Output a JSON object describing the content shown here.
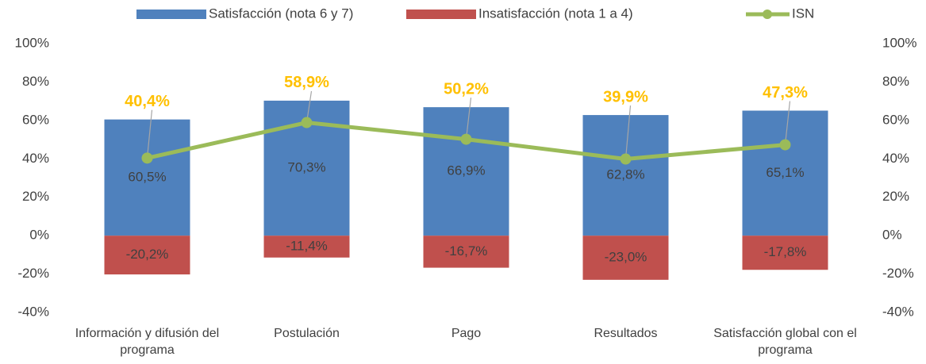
{
  "chart_data": {
    "type": "bar",
    "categories": [
      "Información y difusión del programa",
      "Postulación",
      "Pago",
      "Resultados",
      "Satisfacción global con el programa"
    ],
    "series": [
      {
        "name": "Satisfacción (nota 6 y 7)",
        "type": "bar",
        "color": "#4f81bd",
        "values": [
          60.5,
          70.3,
          66.9,
          62.8,
          65.1
        ],
        "value_labels": [
          "60,5%",
          "70,3%",
          "66,9%",
          "62,8%",
          "65,1%"
        ]
      },
      {
        "name": "Insatisfacción (nota 1 a 4)",
        "type": "bar",
        "color": "#c0504d",
        "values": [
          -20.2,
          -11.4,
          -16.7,
          -23.0,
          -17.8
        ],
        "value_labels": [
          "-20,2%",
          "-11,4%",
          "-16,7%",
          "-23,0%",
          "-17,8%"
        ]
      },
      {
        "name": "ISN",
        "type": "line",
        "axis": "y2",
        "color": "#9bbb59",
        "label_color": "#ffc000",
        "values": [
          40.4,
          58.9,
          50.2,
          39.9,
          47.3
        ],
        "value_labels": [
          "40,4%",
          "58,9%",
          "50,2%",
          "39,9%",
          "47,3%"
        ]
      }
    ],
    "ylim": [
      -40,
      100
    ],
    "yticks": [
      {
        "value": -40,
        "label": "-40%"
      },
      {
        "value": -20,
        "label": "-20%"
      },
      {
        "value": 0,
        "label": "0%"
      },
      {
        "value": 20,
        "label": "20%"
      },
      {
        "value": 40,
        "label": "40%"
      },
      {
        "value": 60,
        "label": "60%"
      },
      {
        "value": 80,
        "label": "80%"
      },
      {
        "value": 100,
        "label": "100%"
      }
    ],
    "y2lim": [
      -40,
      100
    ],
    "y2ticks": [
      {
        "value": -40,
        "label": "-40%"
      },
      {
        "value": -20,
        "label": "-20%"
      },
      {
        "value": 0,
        "label": "0%"
      },
      {
        "value": 20,
        "label": "20%"
      },
      {
        "value": 40,
        "label": "40%"
      },
      {
        "value": 60,
        "label": "60%"
      },
      {
        "value": 80,
        "label": "80%"
      },
      {
        "value": 100,
        "label": "100%"
      }
    ],
    "legend": "top",
    "grid": false
  }
}
